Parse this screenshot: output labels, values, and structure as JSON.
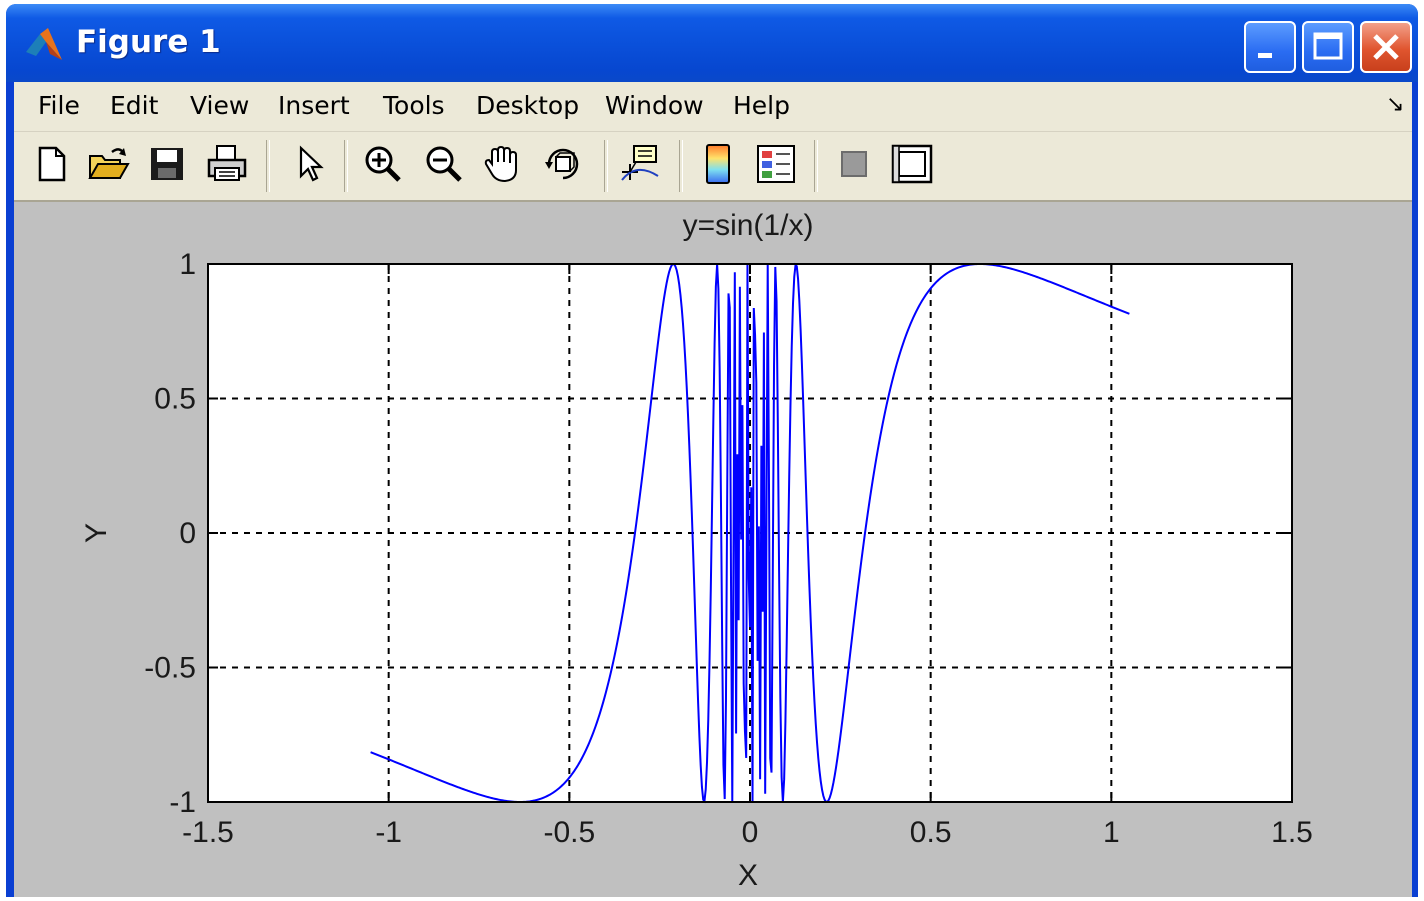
{
  "window": {
    "title": "Figure 1"
  },
  "menu": {
    "items": [
      "File",
      "Edit",
      "View",
      "Insert",
      "Tools",
      "Desktop",
      "Window",
      "Help"
    ],
    "dock_arrow": "↘"
  },
  "toolbar": {
    "buttons": [
      "new-figure-icon",
      "open-file-icon",
      "save-icon",
      "print-icon",
      "edit-plot-icon",
      "zoom-in-icon",
      "zoom-out-icon",
      "pan-hand-icon",
      "rotate-3d-icon",
      "data-cursor-icon",
      "insert-colorbar-icon",
      "insert-legend-icon",
      "hide-plot-tools-icon",
      "show-plot-tools-icon"
    ]
  },
  "colors": {
    "title_bar": "#0a4fd9",
    "plot_line": "#0000ff",
    "figure_bg": "#c0c0c0",
    "axes_bg": "#ffffff"
  },
  "chart_data": {
    "type": "line",
    "title": "y=sin(1/x)",
    "xlabel": "X",
    "ylabel": "Y",
    "xlim": [
      -1.5,
      1.5
    ],
    "ylim": [
      -1,
      1
    ],
    "xticks": [
      -1.5,
      -1,
      -0.5,
      0,
      0.5,
      1,
      1.5
    ],
    "xtick_labels": [
      "-1.5",
      "-1",
      "-0.5",
      "0",
      "0.5",
      "1",
      "1.5"
    ],
    "yticks": [
      -1,
      -0.5,
      0,
      0.5,
      1
    ],
    "ytick_labels": [
      "-1",
      "-0.5",
      "0",
      "0.5",
      "1"
    ],
    "grid": true,
    "grid_style": "dashed",
    "series": [
      {
        "function": "sin(1/x)",
        "x_range": [
          -1.05,
          1.05
        ],
        "color": "#0000ff"
      }
    ]
  }
}
